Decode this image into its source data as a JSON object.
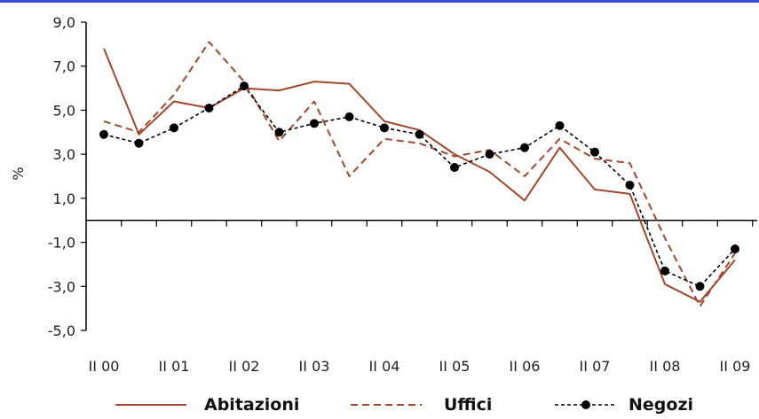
{
  "colors": {
    "accent": "#3a4bd8",
    "abitazioni": "#a3472b",
    "uffici": "#a3472b",
    "negozi": "#000000"
  },
  "chart_data": {
    "type": "line",
    "title": "",
    "xlabel": "",
    "ylabel": "%",
    "ylim": [
      -5,
      9
    ],
    "yticks": [
      "9,0",
      "7,0",
      "5,0",
      "3,0",
      "1,0",
      "-1,0",
      "-3,0",
      "-5,0"
    ],
    "ytick_values": [
      9,
      7,
      5,
      3,
      1,
      -1,
      -3,
      -5
    ],
    "x_tick_labels": [
      "II 00",
      "II 01",
      "II 02",
      "II 03",
      "II 04",
      "II 05",
      "II 06",
      "II 07",
      "II 08",
      "II 09"
    ],
    "x": [
      "II 00",
      "IV 00",
      "II 01",
      "IV 01",
      "II 02",
      "IV 02",
      "II 03",
      "IV 03",
      "II 04",
      "IV 04",
      "II 05",
      "IV 05",
      "II 06",
      "IV 06",
      "II 07",
      "IV 07",
      "II 08",
      "IV 08",
      "II 09"
    ],
    "series": [
      {
        "name": "Abitazioni",
        "style": "solid",
        "values": [
          7.8,
          3.9,
          5.4,
          5.1,
          6.0,
          5.9,
          6.3,
          6.2,
          4.5,
          4.1,
          3.0,
          2.2,
          0.9,
          3.3,
          1.4,
          1.2,
          -2.9,
          -3.7,
          -1.8
        ]
      },
      {
        "name": "Uffici",
        "style": "dashed",
        "values": [
          4.5,
          4.0,
          5.7,
          8.1,
          6.3,
          3.6,
          5.4,
          2.0,
          3.7,
          3.5,
          2.9,
          3.2,
          2.0,
          3.7,
          2.8,
          2.6,
          -0.8,
          -3.9,
          -1.5
        ]
      },
      {
        "name": "Negozi",
        "style": "dotted-markers",
        "values": [
          3.9,
          3.5,
          4.2,
          5.1,
          6.1,
          4.0,
          4.4,
          4.7,
          4.2,
          3.9,
          2.4,
          3.0,
          3.3,
          4.3,
          3.1,
          1.6,
          -2.3,
          -3.0,
          -1.3
        ]
      }
    ],
    "legend_position": "bottom",
    "grid": false
  }
}
